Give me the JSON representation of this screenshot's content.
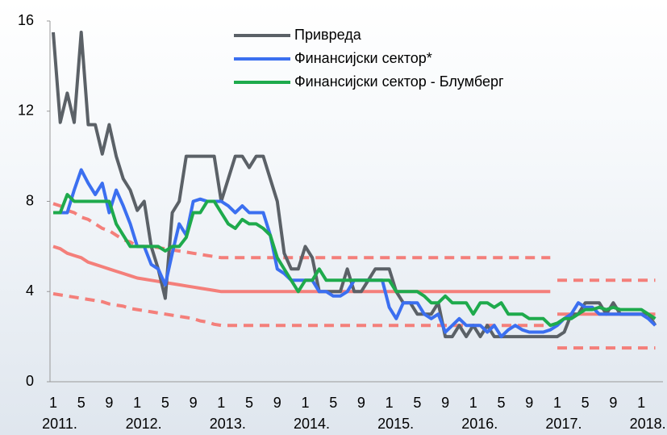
{
  "chart_data": {
    "type": "line",
    "categories": [
      "1",
      null,
      null,
      null,
      "5",
      null,
      null,
      null,
      "9",
      null,
      null,
      null,
      "1",
      null,
      null,
      null,
      "5",
      null,
      null,
      null,
      "9",
      null,
      null,
      null,
      "1",
      null,
      null,
      null,
      "5",
      null,
      null,
      null,
      "9",
      null,
      null,
      null,
      "1",
      null,
      null,
      null,
      "5",
      null,
      null,
      null,
      "9",
      null,
      null,
      null,
      "1",
      null,
      null,
      null,
      "5",
      null,
      null,
      null,
      "9",
      null,
      null,
      null,
      "1",
      null,
      null,
      null,
      "5",
      null,
      null,
      null,
      "9",
      null,
      null,
      null,
      "1",
      null,
      null,
      null,
      "5",
      null,
      null,
      null,
      "9",
      null,
      null,
      null,
      "1",
      null,
      null
    ],
    "year_labels": [
      "2011.",
      "2012.",
      "2013.",
      "2014.",
      "2015.",
      "2016.",
      "2017.",
      "2018."
    ],
    "ylim": [
      0,
      16
    ],
    "yticks": [
      0,
      4,
      8,
      12,
      16
    ],
    "series": [
      {
        "name": "Привреда",
        "color": "#5b6167",
        "values": [
          15.5,
          11.5,
          12.8,
          11.5,
          15.5,
          11.4,
          11.4,
          10.1,
          11.4,
          10,
          9,
          8.5,
          7.6,
          8,
          6,
          5,
          3.7,
          7.5,
          8,
          10,
          10,
          10,
          10,
          10,
          8,
          9,
          10,
          10,
          9.5,
          10,
          10,
          9,
          8,
          5.7,
          5,
          5,
          6,
          5.5,
          4,
          4,
          4,
          4,
          5,
          4,
          4,
          4.5,
          5,
          5,
          5,
          4,
          3.5,
          3.5,
          3,
          3,
          3,
          3.5,
          2,
          2,
          2.5,
          2,
          2.5,
          2,
          2.5,
          2,
          2,
          2,
          2,
          2,
          2,
          2,
          2,
          2,
          2,
          2.2,
          3,
          3,
          3.5,
          3.5,
          3.5,
          3,
          3.5,
          3,
          3,
          3,
          3,
          3,
          2.5
        ]
      },
      {
        "name": "Финансијски сектор*",
        "color": "#3b6ff0",
        "values": [
          7.5,
          7.5,
          7.5,
          8.5,
          9.4,
          8.8,
          8.3,
          8.8,
          7.5,
          8.5,
          7.8,
          7,
          6,
          6,
          5.2,
          5,
          4.3,
          5.7,
          7,
          6.5,
          8,
          8.1,
          8,
          8,
          8,
          7.8,
          7.5,
          7.8,
          7.5,
          7.5,
          7.5,
          6.5,
          5,
          4.8,
          4.5,
          4.5,
          4.5,
          4.5,
          4,
          4,
          3.8,
          3.8,
          4,
          4.5,
          4.5,
          4.5,
          4.5,
          4.5,
          3.3,
          2.8,
          3.5,
          3.5,
          3.5,
          3,
          2.8,
          3,
          2.2,
          2.5,
          2.8,
          2.5,
          2.5,
          2.5,
          2.2,
          2.5,
          2,
          2.3,
          2.5,
          2.3,
          2.2,
          2.2,
          2.2,
          2.3,
          2.5,
          2.8,
          3,
          3.5,
          3.3,
          3.3,
          3,
          3,
          3,
          3,
          3,
          3,
          3,
          2.8,
          2.5
        ]
      },
      {
        "name": "Финансијски сектор - Блумберг",
        "color": "#1eaa4c",
        "values": [
          7.5,
          7.5,
          8.3,
          8,
          8,
          8,
          8,
          8,
          8,
          7,
          6.5,
          6,
          6,
          6,
          6,
          6,
          5.8,
          6,
          6,
          6.4,
          7.5,
          7.5,
          8,
          8,
          7.5,
          7,
          6.8,
          7.2,
          7,
          7,
          6.8,
          6.5,
          5.5,
          5,
          4.5,
          4,
          4.5,
          4.5,
          5,
          4.5,
          4.5,
          4.5,
          4.5,
          4.5,
          4.5,
          4.5,
          4.5,
          4.5,
          4.5,
          4,
          4,
          4,
          4,
          3.8,
          3.5,
          3.5,
          3.8,
          3.5,
          3.5,
          3.5,
          3,
          3.5,
          3.5,
          3.3,
          3.5,
          3,
          3,
          3,
          2.8,
          2.8,
          2.8,
          2.5,
          2.6,
          2.8,
          2.8,
          3,
          3.2,
          3.2,
          3.3,
          3.2,
          3.3,
          3.2,
          3.2,
          3.2,
          3.2,
          3,
          2.8
        ]
      }
    ],
    "reference_lines": [
      {
        "color": "#f47f7a",
        "dashed": false,
        "values": [
          6,
          5.9,
          5.7,
          5.6,
          5.5,
          5.3,
          5.2,
          5.1,
          5,
          4.9,
          4.8,
          4.7,
          4.6,
          4.55,
          4.5,
          4.45,
          4.4,
          4.35,
          4.3,
          4.25,
          4.2,
          4.15,
          4.1,
          4.05,
          4,
          4,
          4,
          4,
          4,
          4,
          4,
          4,
          4,
          4,
          4,
          4,
          4,
          4,
          4,
          4,
          4,
          4,
          4,
          4,
          4,
          4,
          4,
          4,
          4,
          4,
          4,
          4,
          4,
          4,
          4,
          4,
          4,
          4,
          4,
          4,
          4,
          4,
          4,
          4,
          4,
          4,
          4,
          4,
          4,
          4,
          4,
          4,
          null,
          null,
          null,
          null,
          null,
          null,
          null,
          null,
          null,
          null,
          null,
          null,
          null,
          null,
          null
        ]
      },
      {
        "color": "#f47f7a",
        "dashed": false,
        "values": [
          null,
          null,
          null,
          null,
          null,
          null,
          null,
          null,
          null,
          null,
          null,
          null,
          null,
          null,
          null,
          null,
          null,
          null,
          null,
          null,
          null,
          null,
          null,
          null,
          null,
          null,
          null,
          null,
          null,
          null,
          null,
          null,
          null,
          null,
          null,
          null,
          null,
          null,
          null,
          null,
          null,
          null,
          null,
          null,
          null,
          null,
          null,
          null,
          null,
          null,
          null,
          null,
          null,
          null,
          null,
          null,
          null,
          null,
          null,
          null,
          null,
          null,
          null,
          null,
          null,
          null,
          null,
          null,
          null,
          null,
          null,
          null,
          3,
          3,
          3,
          3,
          3,
          3,
          3,
          3,
          3,
          3,
          3,
          3,
          3,
          3,
          3
        ]
      },
      {
        "color": "#f47f7a",
        "dashed": true,
        "values": [
          7.9,
          7.8,
          7.6,
          7.5,
          7.3,
          7.2,
          7,
          6.8,
          6.7,
          6.5,
          6.3,
          6.2,
          6,
          6,
          6,
          5.95,
          5.9,
          5.85,
          5.8,
          5.75,
          5.7,
          5.65,
          5.6,
          5.55,
          5.5,
          5.5,
          5.5,
          5.5,
          5.5,
          5.5,
          5.5,
          5.5,
          5.5,
          5.5,
          5.5,
          5.5,
          5.5,
          5.5,
          5.5,
          5.5,
          5.5,
          5.5,
          5.5,
          5.5,
          5.5,
          5.5,
          5.5,
          5.5,
          5.5,
          5.5,
          5.5,
          5.5,
          5.5,
          5.5,
          5.5,
          5.5,
          5.5,
          5.5,
          5.5,
          5.5,
          5.5,
          5.5,
          5.5,
          5.5,
          5.5,
          5.5,
          5.5,
          5.5,
          5.5,
          5.5,
          5.5,
          5.5,
          null,
          null,
          null,
          null,
          null,
          null,
          null,
          null,
          null,
          null,
          null,
          null,
          null,
          null,
          null
        ]
      },
      {
        "color": "#f47f7a",
        "dashed": true,
        "values": [
          3.9,
          3.85,
          3.8,
          3.75,
          3.7,
          3.65,
          3.6,
          3.55,
          3.45,
          3.4,
          3.35,
          3.25,
          3.2,
          3.15,
          3.1,
          3.05,
          3,
          2.95,
          2.9,
          2.85,
          2.8,
          2.7,
          2.65,
          2.55,
          2.5,
          2.5,
          2.5,
          2.5,
          2.5,
          2.5,
          2.5,
          2.5,
          2.5,
          2.5,
          2.5,
          2.5,
          2.5,
          2.5,
          2.5,
          2.5,
          2.5,
          2.5,
          2.5,
          2.5,
          2.5,
          2.5,
          2.5,
          2.5,
          2.5,
          2.5,
          2.5,
          2.5,
          2.5,
          2.5,
          2.5,
          2.5,
          2.5,
          2.5,
          2.5,
          2.5,
          2.5,
          2.5,
          2.5,
          2.5,
          2.5,
          2.5,
          2.5,
          2.5,
          2.5,
          2.5,
          2.5,
          2.5,
          null,
          null,
          null,
          null,
          null,
          null,
          null,
          null,
          null,
          null,
          null,
          null,
          null,
          null,
          null
        ]
      },
      {
        "color": "#f47f7a",
        "dashed": true,
        "values": [
          null,
          null,
          null,
          null,
          null,
          null,
          null,
          null,
          null,
          null,
          null,
          null,
          null,
          null,
          null,
          null,
          null,
          null,
          null,
          null,
          null,
          null,
          null,
          null,
          null,
          null,
          null,
          null,
          null,
          null,
          null,
          null,
          null,
          null,
          null,
          null,
          null,
          null,
          null,
          null,
          null,
          null,
          null,
          null,
          null,
          null,
          null,
          null,
          null,
          null,
          null,
          null,
          null,
          null,
          null,
          null,
          null,
          null,
          null,
          null,
          null,
          null,
          null,
          null,
          null,
          null,
          null,
          null,
          null,
          null,
          null,
          null,
          4.5,
          4.5,
          4.5,
          4.5,
          4.5,
          4.5,
          4.5,
          4.5,
          4.5,
          4.5,
          4.5,
          4.5,
          4.5,
          4.5,
          4.5
        ]
      },
      {
        "color": "#f47f7a",
        "dashed": true,
        "values": [
          null,
          null,
          null,
          null,
          null,
          null,
          null,
          null,
          null,
          null,
          null,
          null,
          null,
          null,
          null,
          null,
          null,
          null,
          null,
          null,
          null,
          null,
          null,
          null,
          null,
          null,
          null,
          null,
          null,
          null,
          null,
          null,
          null,
          null,
          null,
          null,
          null,
          null,
          null,
          null,
          null,
          null,
          null,
          null,
          null,
          null,
          null,
          null,
          null,
          null,
          null,
          null,
          null,
          null,
          null,
          null,
          null,
          null,
          null,
          null,
          null,
          null,
          null,
          null,
          null,
          null,
          null,
          null,
          null,
          null,
          null,
          null,
          1.5,
          1.5,
          1.5,
          1.5,
          1.5,
          1.5,
          1.5,
          1.5,
          1.5,
          1.5,
          1.5,
          1.5,
          1.5,
          1.5,
          1.5
        ]
      }
    ]
  }
}
